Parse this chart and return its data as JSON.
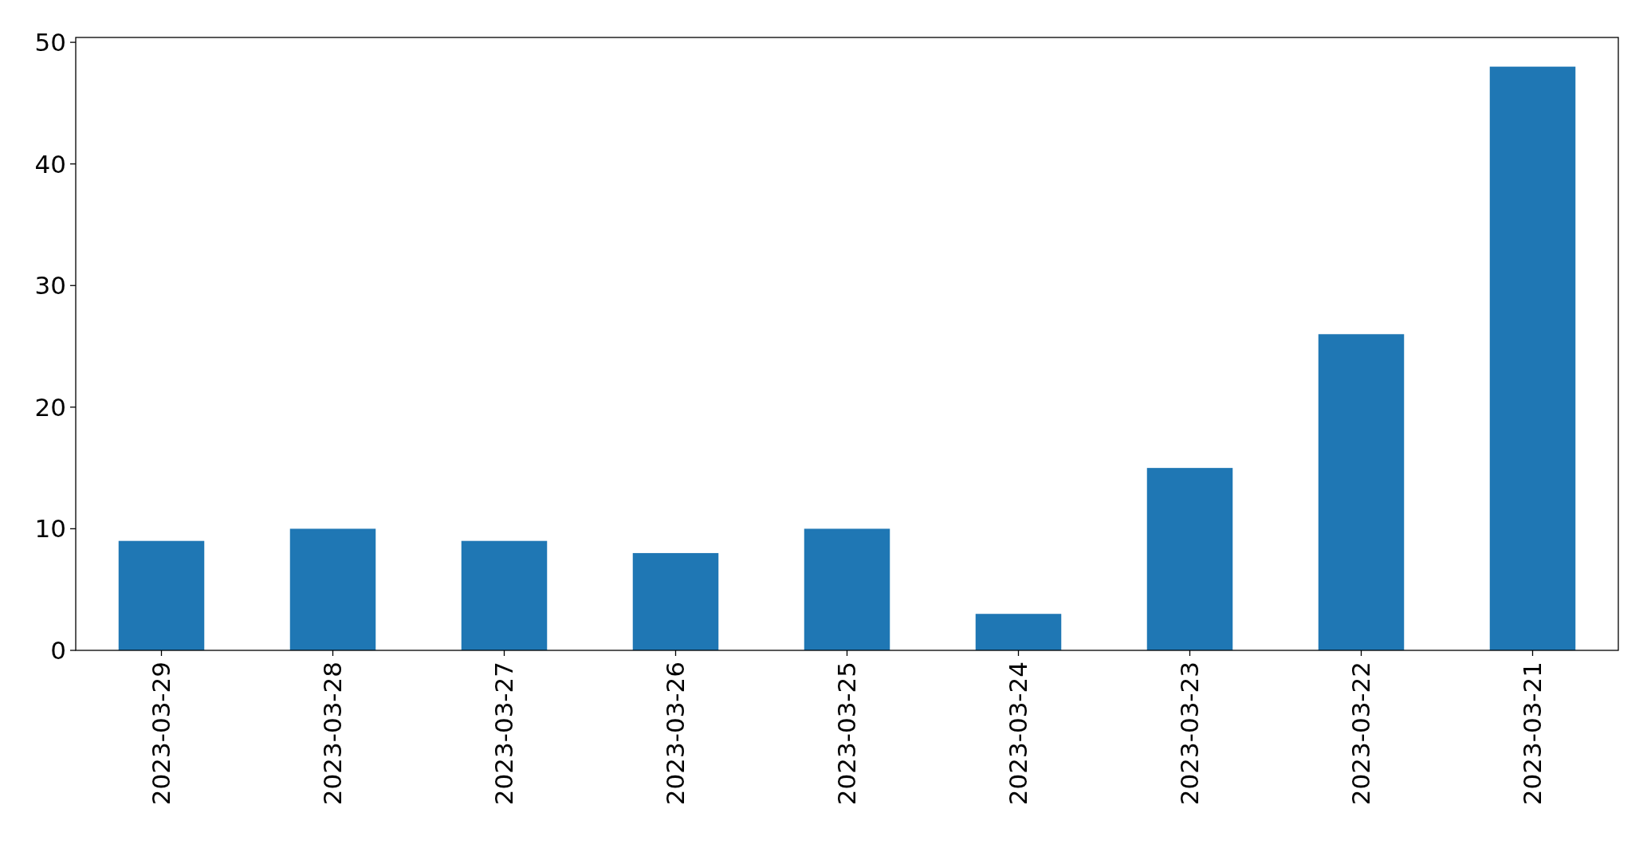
{
  "chart_data": {
    "type": "bar",
    "categories": [
      "2023-03-29",
      "2023-03-28",
      "2023-03-27",
      "2023-03-26",
      "2023-03-25",
      "2023-03-24",
      "2023-03-23",
      "2023-03-22",
      "2023-03-21"
    ],
    "values": [
      9,
      10,
      9,
      8,
      10,
      3,
      15,
      26,
      48
    ],
    "color": "#1f77b4",
    "ylim": [
      0,
      50.4
    ],
    "yticks": [
      0,
      10,
      20,
      30,
      40,
      50
    ]
  }
}
